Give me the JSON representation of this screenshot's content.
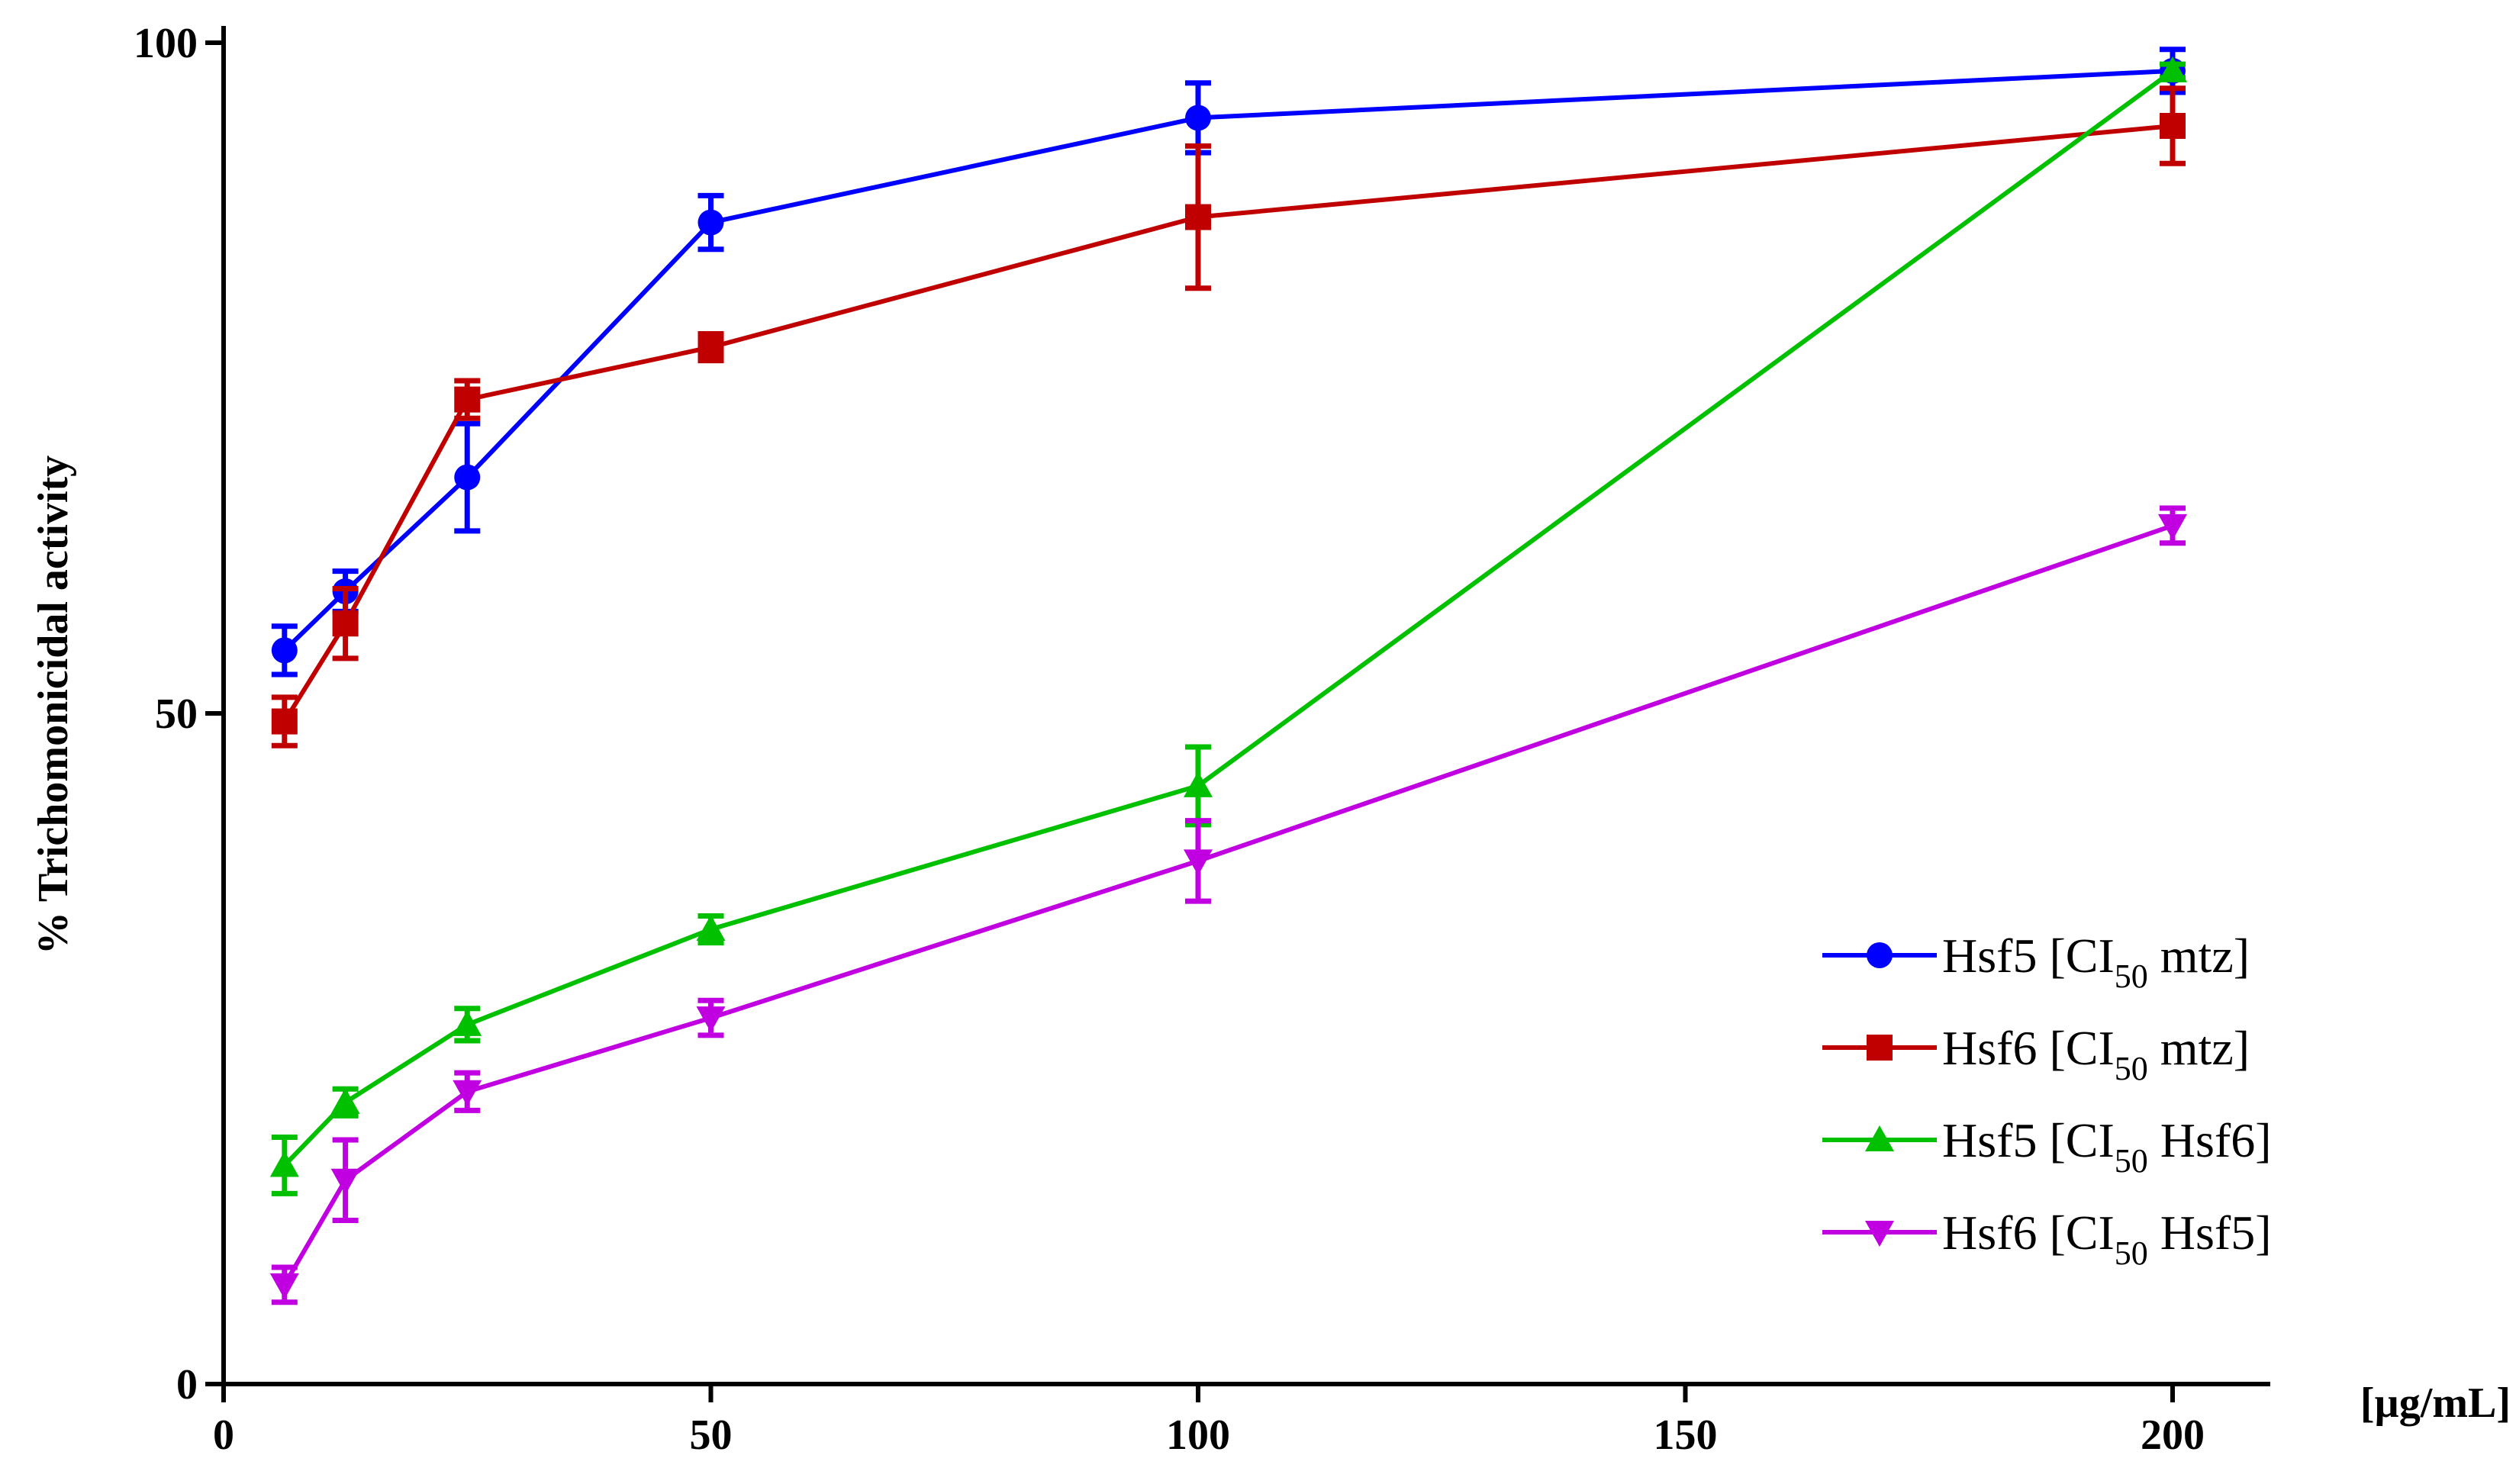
{
  "chart_data": {
    "type": "line",
    "xlabel": "[µg/mL]",
    "ylabel": "% Trichomonicidal activity",
    "xlim": [
      0,
      210
    ],
    "ylim": [
      0,
      100
    ],
    "xticks": [
      "0",
      "50",
      "100",
      "150",
      "200"
    ],
    "yticks": [
      "0",
      "50",
      "100"
    ],
    "grid": false,
    "legend_position": "bottom-right",
    "series": [
      {
        "name": "Hsf5 [CI50 mtz]",
        "legend_main": "Hsf5 [CI",
        "legend_sub": "50",
        "legend_tail": " mtz]",
        "color": "#0000ff",
        "marker": "circle",
        "x": [
          6.25,
          12.5,
          25,
          50,
          100,
          200
        ],
        "y": [
          54.7,
          59.1,
          67.6,
          86.6,
          94.4,
          97.9
        ],
        "err": [
          1.8,
          1.5,
          4.0,
          2.0,
          2.6,
          1.6
        ]
      },
      {
        "name": "Hsf6 [CI50 mtz]",
        "legend_main": "Hsf6 [CI",
        "legend_sub": "50",
        "legend_tail": " mtz]",
        "color": "#c00000",
        "marker": "square",
        "x": [
          6.25,
          12.5,
          25,
          50,
          100,
          200
        ],
        "y": [
          49.4,
          56.7,
          73.4,
          77.3,
          87.0,
          93.8
        ],
        "err": [
          1.8,
          2.6,
          1.4,
          1.0,
          5.3,
          2.8
        ]
      },
      {
        "name": "Hsf5 [CI50 Hsf6]",
        "legend_main": "Hsf5 [CI",
        "legend_sub": "50",
        "legend_tail": " Hsf6]",
        "color": "#00c000",
        "marker": "triangle-up",
        "x": [
          6.25,
          12.5,
          25,
          50,
          100,
          200
        ],
        "y": [
          16.3,
          21.0,
          26.8,
          33.9,
          44.6,
          97.9
        ],
        "err": [
          2.1,
          1.0,
          1.2,
          1.0,
          2.9,
          0.5
        ]
      },
      {
        "name": "Hsf6 [CI50 Hsf5]",
        "legend_main": "Hsf6 [CI",
        "legend_sub": "50",
        "legend_tail": " Hsf5]",
        "color": "#c000e0",
        "marker": "triangle-down",
        "x": [
          6.25,
          12.5,
          25,
          50,
          100,
          200
        ],
        "y": [
          7.4,
          15.2,
          21.8,
          27.3,
          39.0,
          64.0
        ],
        "err": [
          1.3,
          3.0,
          1.4,
          1.3,
          3.0,
          1.3
        ]
      }
    ]
  }
}
